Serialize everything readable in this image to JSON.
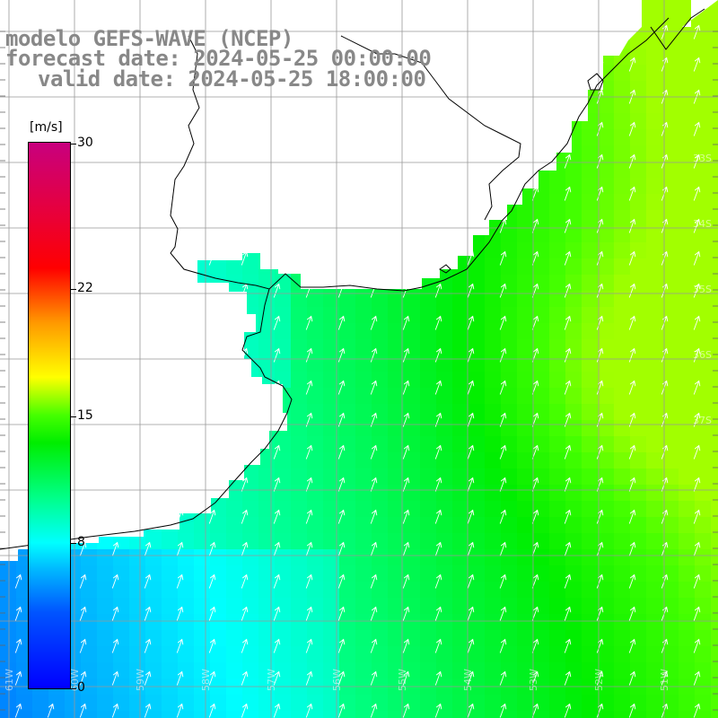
{
  "header": {
    "model": "modelo GEFS-WAVE (NCEP)",
    "forecast": "forecast date: 2024-05-25 00:00:00",
    "valid": "valid date: 2024-05-25 18:00:00"
  },
  "colorbar": {
    "unit": "[m/s]",
    "range": [
      0,
      30
    ],
    "ticks": [
      {
        "value": 30,
        "label": "30"
      },
      {
        "value": 22,
        "label": "22"
      },
      {
        "value": 15,
        "label": "15"
      },
      {
        "value": 8,
        "label": "8"
      },
      {
        "value": 0,
        "label": "0"
      }
    ],
    "colors": [
      "#0000ff",
      "#0055ff",
      "#00bbff",
      "#00ffff",
      "#00ff88",
      "#00ee00",
      "#44ff00",
      "#ffff00",
      "#ff9900",
      "#ff0000",
      "#e8003a",
      "#c8007e"
    ]
  },
  "map": {
    "field": "wind speed",
    "land_color": "#ffffff",
    "coast_color": "#000000",
    "grid_color": "#999999",
    "wind_direction_deg": 20,
    "lon_labels": [
      "61W",
      "60W",
      "59W",
      "58W",
      "57W",
      "56W",
      "55W",
      "54W",
      "53W",
      "52W",
      "51W"
    ],
    "lat_labels": [
      "33S",
      "34S",
      "35S",
      "36S",
      "37S"
    ]
  }
}
